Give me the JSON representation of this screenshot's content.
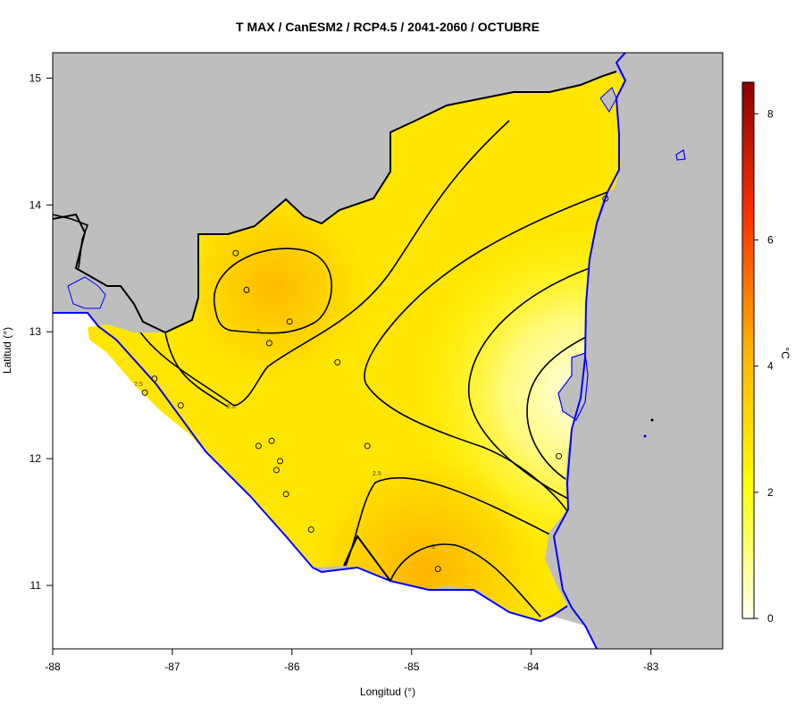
{
  "title": "T MAX / CanESM2 / RCP4.5 / 2041-2060 / OCTUBRE",
  "x_axis": {
    "label": "Longitud (°)",
    "ticks": [
      "-88",
      "-87",
      "-86",
      "-85",
      "-84",
      "-83"
    ]
  },
  "y_axis": {
    "label": "Latitud (°)",
    "ticks": [
      "15",
      "14",
      "13",
      "12",
      "11"
    ]
  },
  "colorbar": {
    "unit": "°C",
    "ticks": [
      "8",
      "6",
      "4",
      "2",
      "0"
    ],
    "colors": [
      "#fffff0",
      "#ffff00",
      "#ffb300",
      "#ff3300",
      "#8b0000"
    ]
  },
  "contour_labels": [
    "3",
    "2.5",
    "2.5",
    "3",
    "2.5"
  ],
  "colors": {
    "land_outside": "#bebebe",
    "coast": "#0000ff",
    "border": "#000000",
    "contour": "#000000"
  },
  "chart_data": {
    "type": "heatmap",
    "title": "T MAX / CanESM2 / RCP4.5 / 2041-2060 / OCTUBRE",
    "xlabel": "Longitud (°)",
    "ylabel": "Latitud (°)",
    "xlim": [
      -88,
      -82.4
    ],
    "ylim": [
      10.5,
      15.2
    ],
    "value_range": [
      0,
      8.5
    ],
    "unit": "°C",
    "contour_levels": [
      2.5,
      3
    ],
    "colormap": [
      "white",
      "yellow",
      "orange",
      "red",
      "darkred"
    ],
    "stations": [
      [
        -86.47,
        13.62
      ],
      [
        -86.38,
        13.33
      ],
      [
        -86.02,
        13.08
      ],
      [
        -86.19,
        12.91
      ],
      [
        -85.62,
        12.76
      ],
      [
        -87.15,
        12.63
      ],
      [
        -87.23,
        12.52
      ],
      [
        -86.93,
        12.42
      ],
      [
        -86.17,
        12.14
      ],
      [
        -86.28,
        12.1
      ],
      [
        -85.37,
        12.1
      ],
      [
        -86.1,
        11.98
      ],
      [
        -86.13,
        11.91
      ],
      [
        -86.05,
        11.72
      ],
      [
        -85.84,
        11.44
      ],
      [
        -84.78,
        11.13
      ],
      [
        -83.77,
        12.02
      ],
      [
        -83.38,
        14.05
      ]
    ]
  }
}
